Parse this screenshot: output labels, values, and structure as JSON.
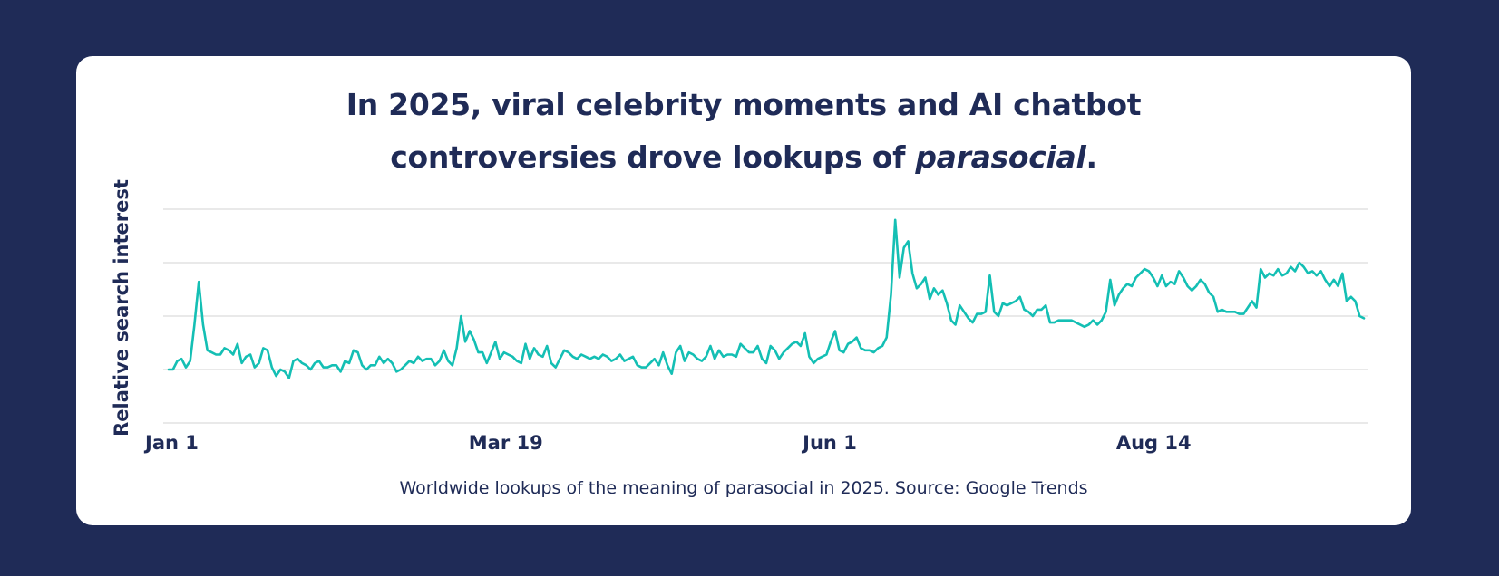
{
  "colors": {
    "background": "#1f2b57",
    "card": "#ffffff",
    "text": "#1f2b57",
    "line": "#14bfb4",
    "grid": "#dcdcdc"
  },
  "chart_data": {
    "type": "line",
    "title_line1": "In 2025, viral celebrity moments and AI chatbot",
    "title_line2_prefix": "controversies drove lookups of ",
    "title_line2_emphasis": "parasocial",
    "title_line2_suffix": ".",
    "xlabel": "",
    "ylabel": "Relative search interest",
    "x_tick_labels": [
      "Jan 1",
      "Mar 19",
      "Jun 1",
      "Aug 14"
    ],
    "x_tick_days": [
      0,
      77,
      151,
      225
    ],
    "x_range_days": [
      0,
      273
    ],
    "ylim": [
      0,
      100
    ],
    "grid": true,
    "gridlines": [
      0,
      25,
      50,
      75,
      100
    ],
    "caption": "Worldwide lookups of the meaning of parasocial in 2025. Source: Google Trends",
    "series": [
      {
        "name": "parasocial",
        "values": [
          25,
          25,
          29,
          30,
          26,
          29,
          46,
          66,
          46,
          34,
          33,
          32,
          32,
          35,
          34,
          32,
          37,
          28,
          31,
          32,
          26,
          28,
          35,
          34,
          26,
          22,
          25,
          24,
          21,
          29,
          30,
          28,
          27,
          25,
          28,
          29,
          26,
          26,
          27,
          27,
          24,
          29,
          28,
          34,
          33,
          27,
          25,
          27,
          27,
          31,
          28,
          30,
          28,
          24,
          25,
          27,
          29,
          28,
          31,
          29,
          30,
          30,
          27,
          29,
          34,
          29,
          27,
          35,
          50,
          38,
          43,
          39,
          33,
          33,
          28,
          33,
          38,
          30,
          33,
          32,
          31,
          29,
          28,
          37,
          30,
          35,
          32,
          31,
          36,
          28,
          26,
          30,
          34,
          33,
          31,
          30,
          32,
          31,
          30,
          31,
          30,
          32,
          31,
          29,
          30,
          32,
          29,
          30,
          31,
          27,
          26,
          26,
          28,
          30,
          27,
          33,
          27,
          23,
          33,
          36,
          29,
          33,
          32,
          30,
          29,
          31,
          36,
          30,
          34,
          31,
          32,
          32,
          31,
          37,
          35,
          33,
          33,
          36,
          30,
          28,
          36,
          34,
          30,
          33,
          35,
          37,
          38,
          36,
          42,
          31,
          28,
          30,
          31,
          32,
          38,
          43,
          34,
          33,
          37,
          38,
          40,
          35,
          34,
          34,
          33,
          35,
          36,
          40,
          60,
          95,
          68,
          82,
          85,
          70,
          63,
          65,
          68,
          58,
          63,
          60,
          62,
          56,
          48,
          46,
          55,
          52,
          49,
          47,
          51,
          51,
          52,
          69,
          52,
          50,
          56,
          55,
          56,
          57,
          59,
          53,
          52,
          50,
          53,
          53,
          55,
          47,
          47,
          48,
          48,
          48,
          48,
          47,
          46,
          45,
          46,
          48,
          46,
          48,
          52,
          67,
          55,
          60,
          63,
          65,
          64,
          68,
          70,
          72,
          71,
          68,
          64,
          69,
          64,
          66,
          65,
          71,
          68,
          64,
          62,
          64,
          67,
          65,
          61,
          59,
          52,
          53,
          52,
          52,
          52,
          51,
          51,
          54,
          57,
          54,
          72,
          68,
          70,
          69,
          72,
          69,
          70,
          73,
          71,
          75,
          73,
          70,
          71,
          69,
          71,
          67,
          64,
          67,
          64,
          70,
          57,
          59,
          57,
          50,
          49
        ]
      }
    ]
  }
}
